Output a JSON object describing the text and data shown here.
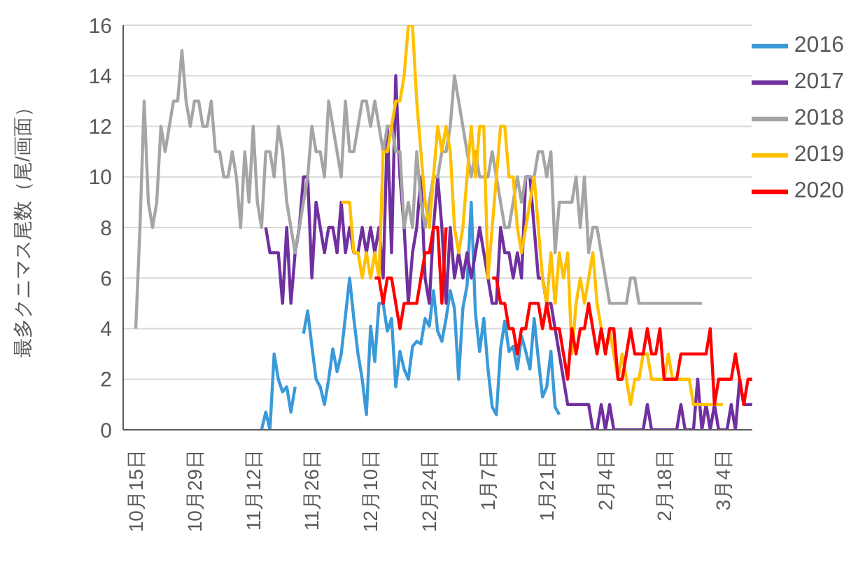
{
  "chart_data": {
    "type": "line",
    "ylabel": "最多クニマス尾数（尾/画面）",
    "categories": [
      "10月15日",
      null,
      null,
      null,
      null,
      null,
      null,
      null,
      null,
      null,
      null,
      null,
      null,
      null,
      "10月29日",
      null,
      null,
      null,
      null,
      null,
      null,
      null,
      null,
      null,
      null,
      null,
      null,
      null,
      "11月12日",
      null,
      null,
      null,
      null,
      null,
      null,
      null,
      null,
      null,
      null,
      null,
      null,
      null,
      "11月26日",
      null,
      null,
      null,
      null,
      null,
      null,
      null,
      null,
      null,
      null,
      null,
      null,
      null,
      "12月10日",
      null,
      null,
      null,
      null,
      null,
      null,
      null,
      null,
      null,
      null,
      null,
      null,
      null,
      "12月24日",
      null,
      null,
      null,
      null,
      null,
      null,
      null,
      null,
      null,
      null,
      null,
      null,
      null,
      "1月7日",
      null,
      null,
      null,
      null,
      null,
      null,
      null,
      null,
      null,
      null,
      null,
      null,
      null,
      "1月21日",
      null,
      null,
      null,
      null,
      null,
      null,
      null,
      null,
      null,
      null,
      null,
      null,
      null,
      "2月4日",
      null,
      null,
      null,
      null,
      null,
      null,
      null,
      null,
      null,
      null,
      null,
      null,
      null,
      "2月18日",
      null,
      null,
      null,
      null,
      null,
      null,
      null,
      null,
      null,
      null,
      null,
      null,
      null,
      "3月4日",
      null,
      null,
      null,
      null,
      null,
      null,
      null
    ],
    "ylim": [
      0,
      16
    ],
    "yticks": [
      0,
      2,
      4,
      6,
      8,
      10,
      12,
      14,
      16
    ],
    "grid": "y",
    "legend": "top right",
    "series": [
      {
        "name": "2016",
        "color": "#3a9ad9",
        "values": [
          null,
          null,
          null,
          null,
          null,
          null,
          null,
          null,
          null,
          null,
          null,
          null,
          null,
          null,
          null,
          null,
          null,
          null,
          null,
          null,
          null,
          null,
          null,
          null,
          null,
          null,
          null,
          null,
          null,
          null,
          0,
          0.7,
          0,
          3,
          2,
          1.5,
          1.7,
          0.7,
          1.7,
          null,
          3.8,
          4.7,
          3.3,
          2,
          1.7,
          1,
          2,
          3.2,
          2.3,
          3,
          4.5,
          6,
          4.4,
          3,
          2,
          0.6,
          4.1,
          2.7,
          5,
          5,
          3.9,
          4.4,
          1.7,
          3.1,
          2.4,
          2,
          3.3,
          3.5,
          3.4,
          4.4,
          4.1,
          5.5,
          3.9,
          3.5,
          4.4,
          5.5,
          4.8,
          2,
          4.8,
          5.7,
          9,
          4.6,
          3.1,
          4.4,
          2.4,
          0.9,
          0.6,
          3.2,
          4.3,
          3.1,
          3.3,
          2.4,
          3.7,
          3.1,
          2.4,
          4.4,
          2.8,
          1.3,
          1.7,
          3.1,
          0.9,
          0.6,
          null,
          null,
          null,
          null,
          null,
          null,
          null,
          null,
          null,
          null,
          null,
          null,
          null,
          null,
          null,
          null,
          null,
          null,
          null,
          null,
          null,
          null,
          null,
          null,
          null,
          null,
          null,
          null,
          null,
          null,
          null,
          null,
          null,
          null,
          null,
          null,
          null,
          null,
          null,
          null,
          null,
          null,
          null,
          null,
          null,
          null
        ]
      },
      {
        "name": "2017",
        "color": "#7030a0",
        "values": [
          null,
          null,
          null,
          null,
          null,
          null,
          null,
          null,
          null,
          null,
          null,
          null,
          null,
          null,
          null,
          null,
          null,
          null,
          null,
          null,
          null,
          null,
          null,
          null,
          null,
          null,
          null,
          null,
          null,
          null,
          null,
          8,
          7,
          7,
          7,
          5,
          8,
          5,
          7,
          8,
          10,
          10,
          6,
          9,
          8,
          7,
          8,
          8,
          7,
          9,
          7,
          8,
          7,
          7,
          8,
          7,
          8,
          7,
          8,
          6,
          12,
          7,
          14,
          10,
          8,
          5,
          7,
          8,
          10,
          6,
          5,
          8,
          10,
          8,
          5,
          8,
          6,
          7,
          6,
          7,
          6,
          7,
          8,
          7,
          6,
          5,
          5,
          8,
          7,
          7,
          6,
          7,
          6,
          10,
          10,
          8,
          6,
          6,
          5,
          5,
          4,
          3,
          2,
          1,
          1,
          1,
          1,
          1,
          1,
          0,
          0,
          1,
          0,
          1,
          0,
          0,
          0,
          0,
          0,
          0,
          0,
          0,
          1,
          0,
          0,
          0,
          0,
          0,
          0,
          0,
          1,
          0,
          0,
          0,
          2,
          0,
          1,
          0,
          1,
          0,
          0,
          0,
          1,
          0,
          2,
          1,
          1,
          1
        ]
      },
      {
        "name": "2018",
        "color": "#a5a5a5",
        "values": [
          4,
          8,
          13,
          9,
          8,
          9,
          12,
          11,
          12,
          13,
          13,
          15,
          13,
          12,
          13,
          13,
          12,
          12,
          13,
          11,
          11,
          10,
          10,
          11,
          10,
          8,
          11,
          9,
          12,
          9,
          8,
          11,
          11,
          10,
          12,
          11,
          9,
          8,
          7,
          8,
          9,
          10,
          12,
          11,
          11,
          10,
          13,
          12,
          11,
          10,
          13,
          11,
          11,
          12,
          13,
          13,
          12,
          13,
          12,
          11,
          12,
          12,
          11,
          11,
          8,
          9,
          8,
          11,
          9,
          8,
          9,
          10,
          10,
          11,
          11,
          12,
          14,
          13,
          12,
          11,
          10,
          11,
          10,
          10,
          10,
          11,
          10,
          9,
          8,
          8,
          9,
          10,
          9,
          10,
          10,
          10,
          11,
          11,
          10,
          11,
          7,
          9,
          9,
          9,
          9,
          10,
          8,
          10,
          7,
          8,
          8,
          7,
          6,
          5,
          5,
          5,
          5,
          5,
          6,
          6,
          5,
          5,
          5,
          5,
          5,
          5,
          5,
          5,
          5,
          5,
          5,
          5,
          5,
          5,
          5,
          5,
          null,
          null,
          null,
          null,
          null,
          null,
          null,
          null,
          null,
          null,
          null,
          null
        ]
      },
      {
        "name": "2019",
        "color": "#ffc000",
        "values": [
          null,
          null,
          null,
          null,
          null,
          null,
          null,
          null,
          null,
          null,
          null,
          null,
          null,
          null,
          null,
          null,
          null,
          null,
          null,
          null,
          null,
          null,
          null,
          null,
          null,
          null,
          null,
          null,
          null,
          null,
          null,
          null,
          null,
          null,
          null,
          null,
          null,
          null,
          null,
          null,
          null,
          null,
          null,
          null,
          null,
          null,
          null,
          null,
          null,
          9,
          9,
          9,
          7,
          7,
          6,
          7,
          6,
          7,
          6,
          11,
          11,
          12,
          13,
          13,
          14,
          16,
          16,
          13,
          11,
          9,
          8,
          10,
          12,
          11,
          12,
          11,
          8,
          7,
          8,
          10,
          12,
          10,
          12,
          12,
          6,
          8,
          10,
          12,
          12,
          10,
          10,
          8,
          7,
          8,
          9,
          10,
          8,
          6,
          5,
          7,
          5,
          7,
          6,
          7,
          3,
          5,
          6,
          5,
          6,
          7,
          5,
          4,
          3,
          4,
          3,
          2,
          3,
          2,
          1,
          2,
          2,
          3,
          3,
          2,
          2,
          2,
          2,
          3,
          2,
          2,
          2,
          2,
          2,
          1,
          1,
          1,
          1,
          1,
          1,
          1,
          1,
          null,
          null,
          null,
          null,
          null,
          null,
          null
        ]
      },
      {
        "name": "2020",
        "color": "#ff0000",
        "values": [
          null,
          null,
          null,
          null,
          null,
          null,
          null,
          null,
          null,
          null,
          null,
          null,
          null,
          null,
          null,
          null,
          null,
          null,
          null,
          null,
          null,
          null,
          null,
          null,
          null,
          null,
          null,
          null,
          null,
          null,
          null,
          null,
          null,
          null,
          null,
          null,
          null,
          null,
          null,
          null,
          null,
          null,
          null,
          null,
          null,
          null,
          null,
          null,
          null,
          null,
          null,
          null,
          null,
          null,
          null,
          null,
          null,
          6,
          6,
          5,
          6,
          6,
          5,
          4,
          5,
          5,
          5,
          5,
          6,
          7,
          7,
          8,
          8,
          5,
          8,
          null,
          null,
          null,
          null,
          null,
          null,
          null,
          null,
          null,
          null,
          6,
          6,
          5,
          5,
          4,
          4,
          3,
          4,
          4,
          5,
          5,
          5,
          4,
          5,
          4,
          4,
          4,
          3,
          2,
          4,
          3,
          4,
          4,
          5,
          4,
          3,
          4,
          3,
          4,
          4,
          2,
          2,
          3,
          4,
          3,
          3,
          3,
          4,
          3,
          3,
          4,
          2,
          2,
          2,
          2,
          3,
          3,
          3,
          3,
          3,
          3,
          3,
          4,
          1,
          2,
          2,
          2,
          2,
          3,
          2,
          1,
          2,
          2
        ]
      }
    ]
  }
}
